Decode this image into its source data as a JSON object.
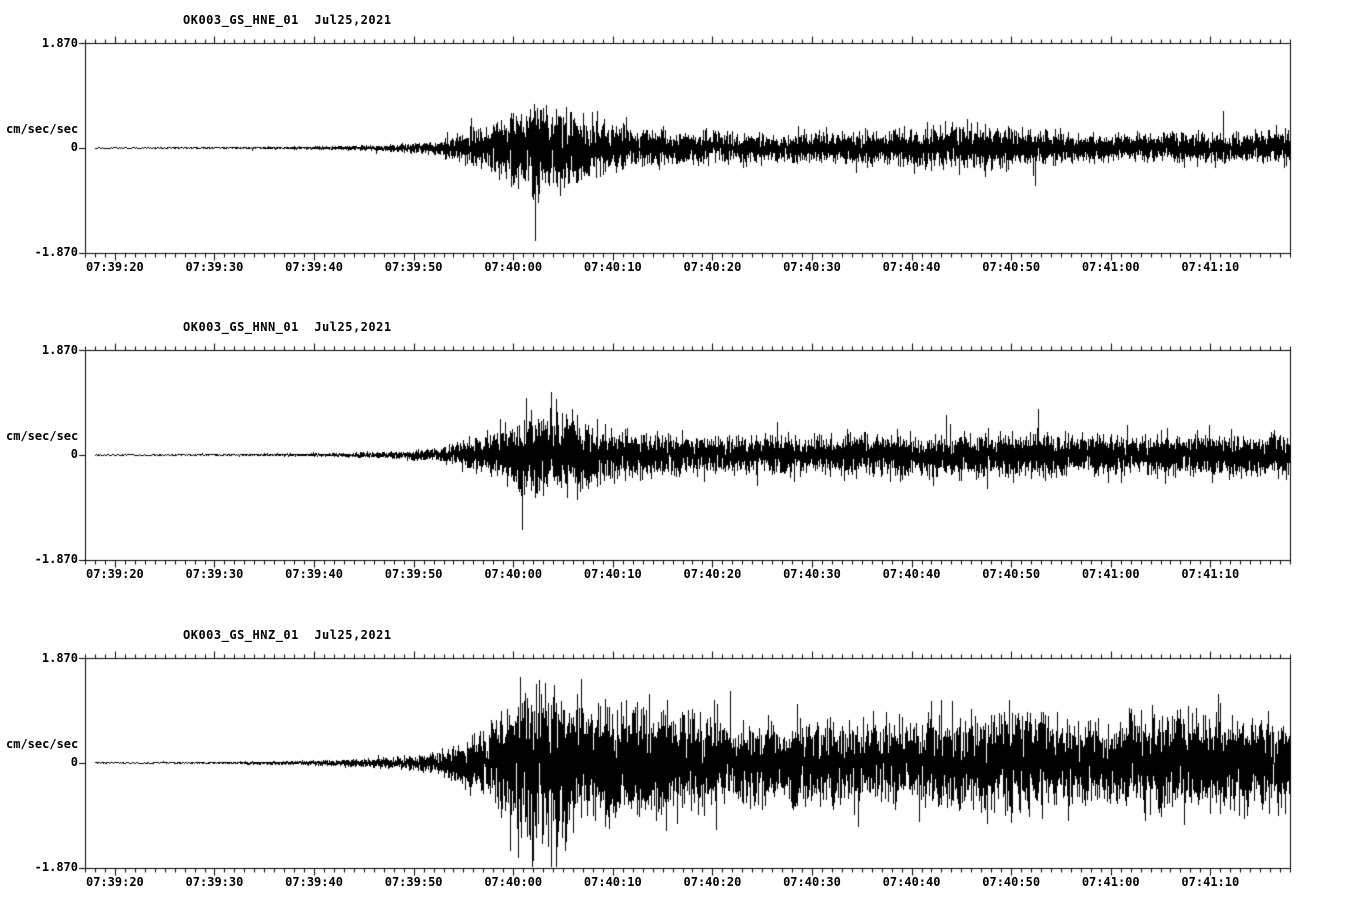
{
  "page": {
    "background": "#ffffff",
    "ink": "#000000"
  },
  "chart_data": [
    {
      "type": "line",
      "subtype": "seismogram",
      "title": "OK003_GS_HNE_01  Jul25,2021",
      "station": "OK003_GS_HNE_01",
      "date": "Jul25,2021",
      "ylabel": "cm/sec/sec",
      "ylim": [
        -1.87,
        1.87
      ],
      "ytick_labels": [
        "1.870",
        "0",
        "-1.870"
      ],
      "grid": false,
      "legend": "none",
      "x_start": "07:39:17",
      "x_end": "07:41:18",
      "x_tick_labels": [
        "07:39:20",
        "07:39:30",
        "07:39:40",
        "07:39:50",
        "07:40:00",
        "07:40:10",
        "07:40:20",
        "07:40:30",
        "07:40:40",
        "07:40:50",
        "07:41:00",
        "07:41:10"
      ],
      "minor_tick_interval_sec": 1,
      "major_tick_interval_sec": 10,
      "envelope_t_sec": [
        0,
        5,
        10,
        15,
        20,
        25,
        30,
        35,
        40,
        45,
        50,
        55,
        60,
        65,
        70,
        75,
        80,
        85,
        90,
        95,
        100,
        105,
        110,
        115,
        120
      ],
      "envelope_amp": [
        0.012,
        0.012,
        0.014,
        0.016,
        0.02,
        0.03,
        0.05,
        0.1,
        0.3,
        0.72,
        0.5,
        0.3,
        0.26,
        0.24,
        0.22,
        0.24,
        0.26,
        0.3,
        0.33,
        0.28,
        0.24,
        0.22,
        0.24,
        0.22,
        0.26
      ],
      "seed": 101
    },
    {
      "type": "line",
      "subtype": "seismogram",
      "title": "OK003_GS_HNN_01  Jul25,2021",
      "station": "OK003_GS_HNN_01",
      "date": "Jul25,2021",
      "ylabel": "cm/sec/sec",
      "ylim": [
        -1.87,
        1.87
      ],
      "ytick_labels": [
        "1.870",
        "0",
        "-1.870"
      ],
      "grid": false,
      "legend": "none",
      "x_start": "07:39:17",
      "x_end": "07:41:18",
      "x_tick_labels": [
        "07:39:20",
        "07:39:30",
        "07:39:40",
        "07:39:50",
        "07:40:00",
        "07:40:10",
        "07:40:20",
        "07:40:30",
        "07:40:40",
        "07:40:50",
        "07:41:00",
        "07:41:10"
      ],
      "minor_tick_interval_sec": 1,
      "major_tick_interval_sec": 10,
      "envelope_t_sec": [
        0,
        5,
        10,
        15,
        20,
        25,
        30,
        35,
        40,
        45,
        50,
        55,
        60,
        65,
        70,
        75,
        80,
        85,
        90,
        95,
        100,
        105,
        110,
        115,
        120
      ],
      "envelope_amp": [
        0.012,
        0.012,
        0.014,
        0.016,
        0.02,
        0.03,
        0.05,
        0.1,
        0.28,
        0.65,
        0.55,
        0.34,
        0.3,
        0.28,
        0.3,
        0.3,
        0.32,
        0.32,
        0.34,
        0.35,
        0.32,
        0.3,
        0.3,
        0.3,
        0.34
      ],
      "seed": 202
    },
    {
      "type": "line",
      "subtype": "seismogram",
      "title": "OK003_GS_HNZ_01  Jul25,2021",
      "station": "OK003_GS_HNZ_01",
      "date": "Jul25,2021",
      "ylabel": "cm/sec/sec",
      "ylim": [
        -1.87,
        1.87
      ],
      "ytick_labels": [
        "1.870",
        "0",
        "-1.870"
      ],
      "grid": false,
      "legend": "none",
      "x_start": "07:39:17",
      "x_end": "07:41:18",
      "x_tick_labels": [
        "07:39:20",
        "07:39:30",
        "07:39:40",
        "07:39:50",
        "07:40:00",
        "07:40:10",
        "07:40:20",
        "07:40:30",
        "07:40:40",
        "07:40:50",
        "07:41:00",
        "07:41:10"
      ],
      "minor_tick_interval_sec": 1,
      "major_tick_interval_sec": 10,
      "envelope_t_sec": [
        0,
        5,
        10,
        15,
        20,
        25,
        30,
        35,
        40,
        45,
        50,
        55,
        60,
        65,
        70,
        75,
        80,
        85,
        90,
        95,
        100,
        105,
        110,
        115,
        120
      ],
      "envelope_amp": [
        0.012,
        0.013,
        0.015,
        0.02,
        0.03,
        0.05,
        0.08,
        0.16,
        0.5,
        1.3,
        0.95,
        0.8,
        0.8,
        0.6,
        0.55,
        0.65,
        0.6,
        0.7,
        0.75,
        0.8,
        0.65,
        0.7,
        0.75,
        0.65,
        0.7
      ],
      "seed": 303
    }
  ]
}
